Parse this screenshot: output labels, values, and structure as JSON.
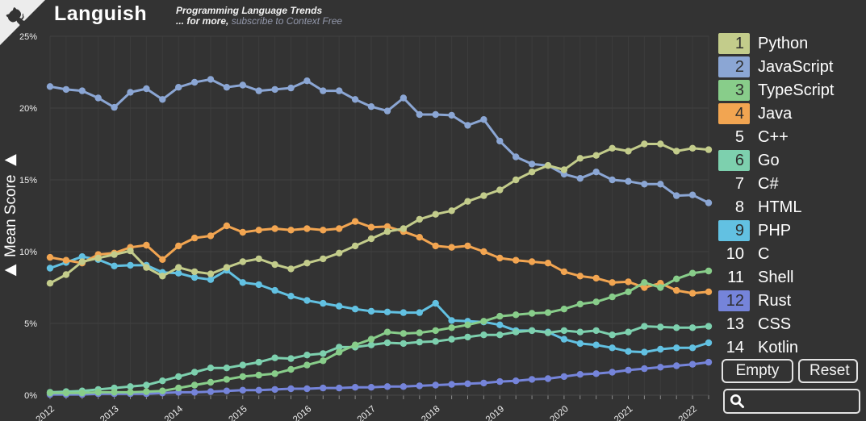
{
  "header": {
    "title": "Languish",
    "subtitle": "Programming Language Trends",
    "more_prefix": "... for more,",
    "more_link": "subscribe to Context Free"
  },
  "y_axis": {
    "label": "Mean Score",
    "arrow": "▶"
  },
  "buttons": {
    "empty": "Empty",
    "reset": "Reset"
  },
  "search": {
    "value": "",
    "placeholder": ""
  },
  "legend": {
    "items": [
      {
        "rank": 1,
        "label": "Python",
        "selected": true,
        "color": "#c3cc8b"
      },
      {
        "rank": 2,
        "label": "JavaScript",
        "selected": true,
        "color": "#8ba6d4"
      },
      {
        "rank": 3,
        "label": "TypeScript",
        "selected": true,
        "color": "#88cd8a"
      },
      {
        "rank": 4,
        "label": "Java",
        "selected": true,
        "color": "#f2a551"
      },
      {
        "rank": 5,
        "label": "C++",
        "selected": false,
        "color": ""
      },
      {
        "rank": 6,
        "label": "Go",
        "selected": true,
        "color": "#7dd0ae"
      },
      {
        "rank": 7,
        "label": "C#",
        "selected": false,
        "color": ""
      },
      {
        "rank": 8,
        "label": "HTML",
        "selected": false,
        "color": ""
      },
      {
        "rank": 9,
        "label": "PHP",
        "selected": true,
        "color": "#62c1e2"
      },
      {
        "rank": 10,
        "label": "C",
        "selected": false,
        "color": ""
      },
      {
        "rank": 11,
        "label": "Shell",
        "selected": false,
        "color": ""
      },
      {
        "rank": 12,
        "label": "Rust",
        "selected": true,
        "color": "#7584da"
      },
      {
        "rank": 13,
        "label": "CSS",
        "selected": false,
        "color": ""
      },
      {
        "rank": 14,
        "label": "Kotlin",
        "selected": false,
        "color": ""
      }
    ]
  },
  "chart_data": {
    "type": "line",
    "title": "Programming Language Trends",
    "xlabel": "",
    "ylabel": "Mean Score",
    "grid": true,
    "legend_position": "right",
    "marker": "circle",
    "x_start": 2012.0,
    "x_step": 0.25,
    "x_end": 2022.25,
    "x_tick_years": [
      2012,
      2013,
      2014,
      2015,
      2016,
      2017,
      2018,
      2019,
      2020,
      2021,
      2022
    ],
    "ylim": [
      0,
      25
    ],
    "y_ticks": [
      0,
      5,
      10,
      15,
      20,
      25
    ],
    "y_tick_labels": [
      "0%",
      "5%",
      "10%",
      "15%",
      "20%",
      "25%"
    ],
    "series": [
      {
        "name": "Python",
        "color": "#c3cc8b",
        "values": [
          7.8,
          8.4,
          9.3,
          9.55,
          9.8,
          10.05,
          8.9,
          8.3,
          8.9,
          8.6,
          8.45,
          8.9,
          9.3,
          9.5,
          9.1,
          8.8,
          9.2,
          9.5,
          9.9,
          10.4,
          10.9,
          11.4,
          11.6,
          12.25,
          12.6,
          12.85,
          13.5,
          13.9,
          14.3,
          15.0,
          15.55,
          16.0,
          15.7,
          16.5,
          16.7,
          17.2,
          17.0,
          17.5,
          17.5,
          17.0,
          17.2,
          17.1
        ]
      },
      {
        "name": "JavaScript",
        "color": "#8ba6d4",
        "values": [
          21.5,
          21.3,
          21.2,
          20.7,
          20.05,
          21.1,
          21.35,
          20.6,
          21.45,
          21.8,
          22.0,
          21.45,
          21.6,
          21.2,
          21.3,
          21.4,
          21.9,
          21.2,
          21.2,
          20.6,
          20.1,
          19.8,
          20.7,
          19.55,
          19.55,
          19.5,
          18.8,
          19.2,
          17.7,
          16.6,
          16.1,
          16.0,
          15.4,
          15.1,
          15.55,
          15.0,
          14.9,
          14.7,
          14.7,
          13.9,
          13.95,
          13.4
        ]
      },
      {
        "name": "TypeScript",
        "color": "#88cd8a",
        "values": [
          0.15,
          0.15,
          0.15,
          0.2,
          0.2,
          0.2,
          0.25,
          0.3,
          0.5,
          0.7,
          0.9,
          1.1,
          1.3,
          1.4,
          1.5,
          1.8,
          2.1,
          2.4,
          3.0,
          3.5,
          3.9,
          4.4,
          4.3,
          4.35,
          4.5,
          4.7,
          4.9,
          5.15,
          5.5,
          5.6,
          5.7,
          5.75,
          6.0,
          6.35,
          6.5,
          6.85,
          7.2,
          7.85,
          7.5,
          8.1,
          8.5,
          8.65
        ]
      },
      {
        "name": "Java",
        "color": "#f2a551",
        "values": [
          9.6,
          9.4,
          9.2,
          9.8,
          9.9,
          10.3,
          10.45,
          9.45,
          10.4,
          10.95,
          11.1,
          11.8,
          11.35,
          11.5,
          11.6,
          11.5,
          11.6,
          11.5,
          11.6,
          12.1,
          11.7,
          11.75,
          11.4,
          11.0,
          10.4,
          10.3,
          10.4,
          10.0,
          9.55,
          9.4,
          9.3,
          9.2,
          8.6,
          8.3,
          8.15,
          7.85,
          7.9,
          7.5,
          7.8,
          7.3,
          7.1,
          7.2
        ]
      },
      {
        "name": "Go",
        "color": "#7dd0ae",
        "values": [
          0.2,
          0.25,
          0.3,
          0.4,
          0.5,
          0.6,
          0.7,
          1.0,
          1.3,
          1.6,
          1.9,
          1.9,
          2.1,
          2.3,
          2.6,
          2.55,
          2.8,
          2.9,
          3.35,
          3.35,
          3.5,
          3.65,
          3.6,
          3.7,
          3.75,
          3.9,
          4.05,
          4.2,
          4.2,
          4.4,
          4.5,
          4.35,
          4.5,
          4.4,
          4.5,
          4.2,
          4.4,
          4.8,
          4.75,
          4.7,
          4.7,
          4.8
        ]
      },
      {
        "name": "PHP",
        "color": "#62c1e2",
        "values": [
          8.85,
          9.25,
          9.65,
          9.45,
          9.0,
          9.05,
          9.05,
          8.55,
          8.5,
          8.2,
          8.05,
          8.7,
          7.85,
          7.7,
          7.3,
          6.9,
          6.6,
          6.4,
          6.2,
          6.0,
          5.85,
          5.8,
          5.75,
          5.75,
          6.4,
          5.2,
          5.15,
          5.1,
          4.9,
          4.5,
          4.5,
          4.4,
          3.9,
          3.6,
          3.5,
          3.3,
          3.05,
          3.0,
          3.2,
          3.3,
          3.3,
          3.65
        ]
      },
      {
        "name": "Rust",
        "color": "#7584da",
        "values": [
          0.05,
          0.05,
          0.05,
          0.1,
          0.1,
          0.1,
          0.1,
          0.15,
          0.2,
          0.2,
          0.25,
          0.3,
          0.35,
          0.35,
          0.4,
          0.45,
          0.45,
          0.5,
          0.5,
          0.55,
          0.55,
          0.6,
          0.6,
          0.65,
          0.7,
          0.75,
          0.8,
          0.85,
          0.95,
          1.0,
          1.1,
          1.15,
          1.3,
          1.45,
          1.5,
          1.6,
          1.75,
          1.85,
          1.95,
          2.05,
          2.15,
          2.3
        ]
      }
    ]
  }
}
